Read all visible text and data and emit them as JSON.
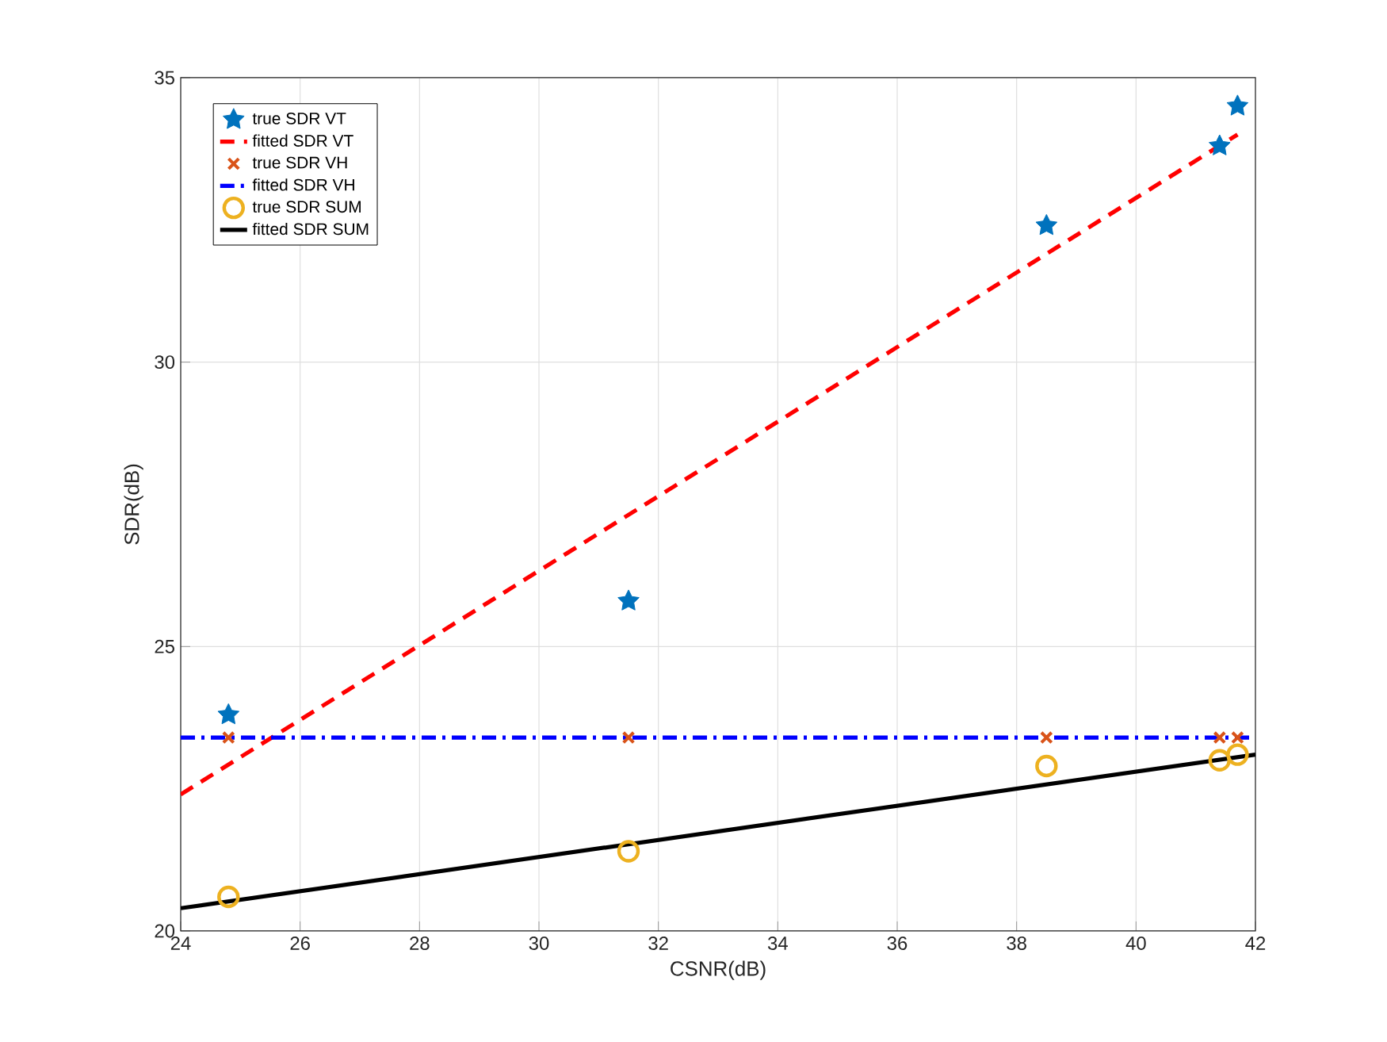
{
  "chart_data": {
    "type": "scatter",
    "xlabel": "CSNR(dB)",
    "ylabel": "SDR(dB)",
    "xlim": [
      24,
      42
    ],
    "xticks": [
      24,
      26,
      28,
      30,
      32,
      34,
      36,
      38,
      40,
      42
    ],
    "ylim": [
      20,
      35
    ],
    "yticks": [
      20,
      25,
      30,
      35
    ],
    "grid": true,
    "legend": "top left",
    "series": [
      {
        "name": "true SDR VT",
        "marker": "star",
        "color": "#0072bd",
        "x": [
          24.8,
          31.5,
          38.5,
          41.4,
          41.7
        ],
        "values": [
          23.8,
          25.8,
          32.4,
          33.8,
          34.5
        ]
      },
      {
        "name": "fitted SDR VT",
        "type": "line",
        "line_style": "dashed",
        "marker": "none",
        "color": "#ff0000",
        "x": [
          24,
          41.7
        ],
        "values": [
          22.4,
          34.0
        ]
      },
      {
        "name": "true SDR VH",
        "marker": "cross",
        "color": "#d95319",
        "x": [
          24.8,
          31.5,
          38.5,
          41.4,
          41.7
        ],
        "values": [
          23.4,
          23.4,
          23.4,
          23.4,
          23.4
        ]
      },
      {
        "name": "fitted SDR VH",
        "type": "line",
        "line_style": "dashdot",
        "marker": "none",
        "color": "#0000ff",
        "x": [
          24,
          42
        ],
        "values": [
          23.4,
          23.4
        ]
      },
      {
        "name": "true SDR SUM",
        "marker": "circle",
        "color": "#edb120",
        "x": [
          24.8,
          31.5,
          38.5,
          41.4,
          41.7
        ],
        "values": [
          20.6,
          21.4,
          22.9,
          23.0,
          23.1
        ]
      },
      {
        "name": "fitted SDR SUM",
        "type": "line",
        "line_style": "solid",
        "marker": "none",
        "color": "#000000",
        "x": [
          24,
          42
        ],
        "values": [
          20.4,
          23.1
        ]
      }
    ]
  }
}
